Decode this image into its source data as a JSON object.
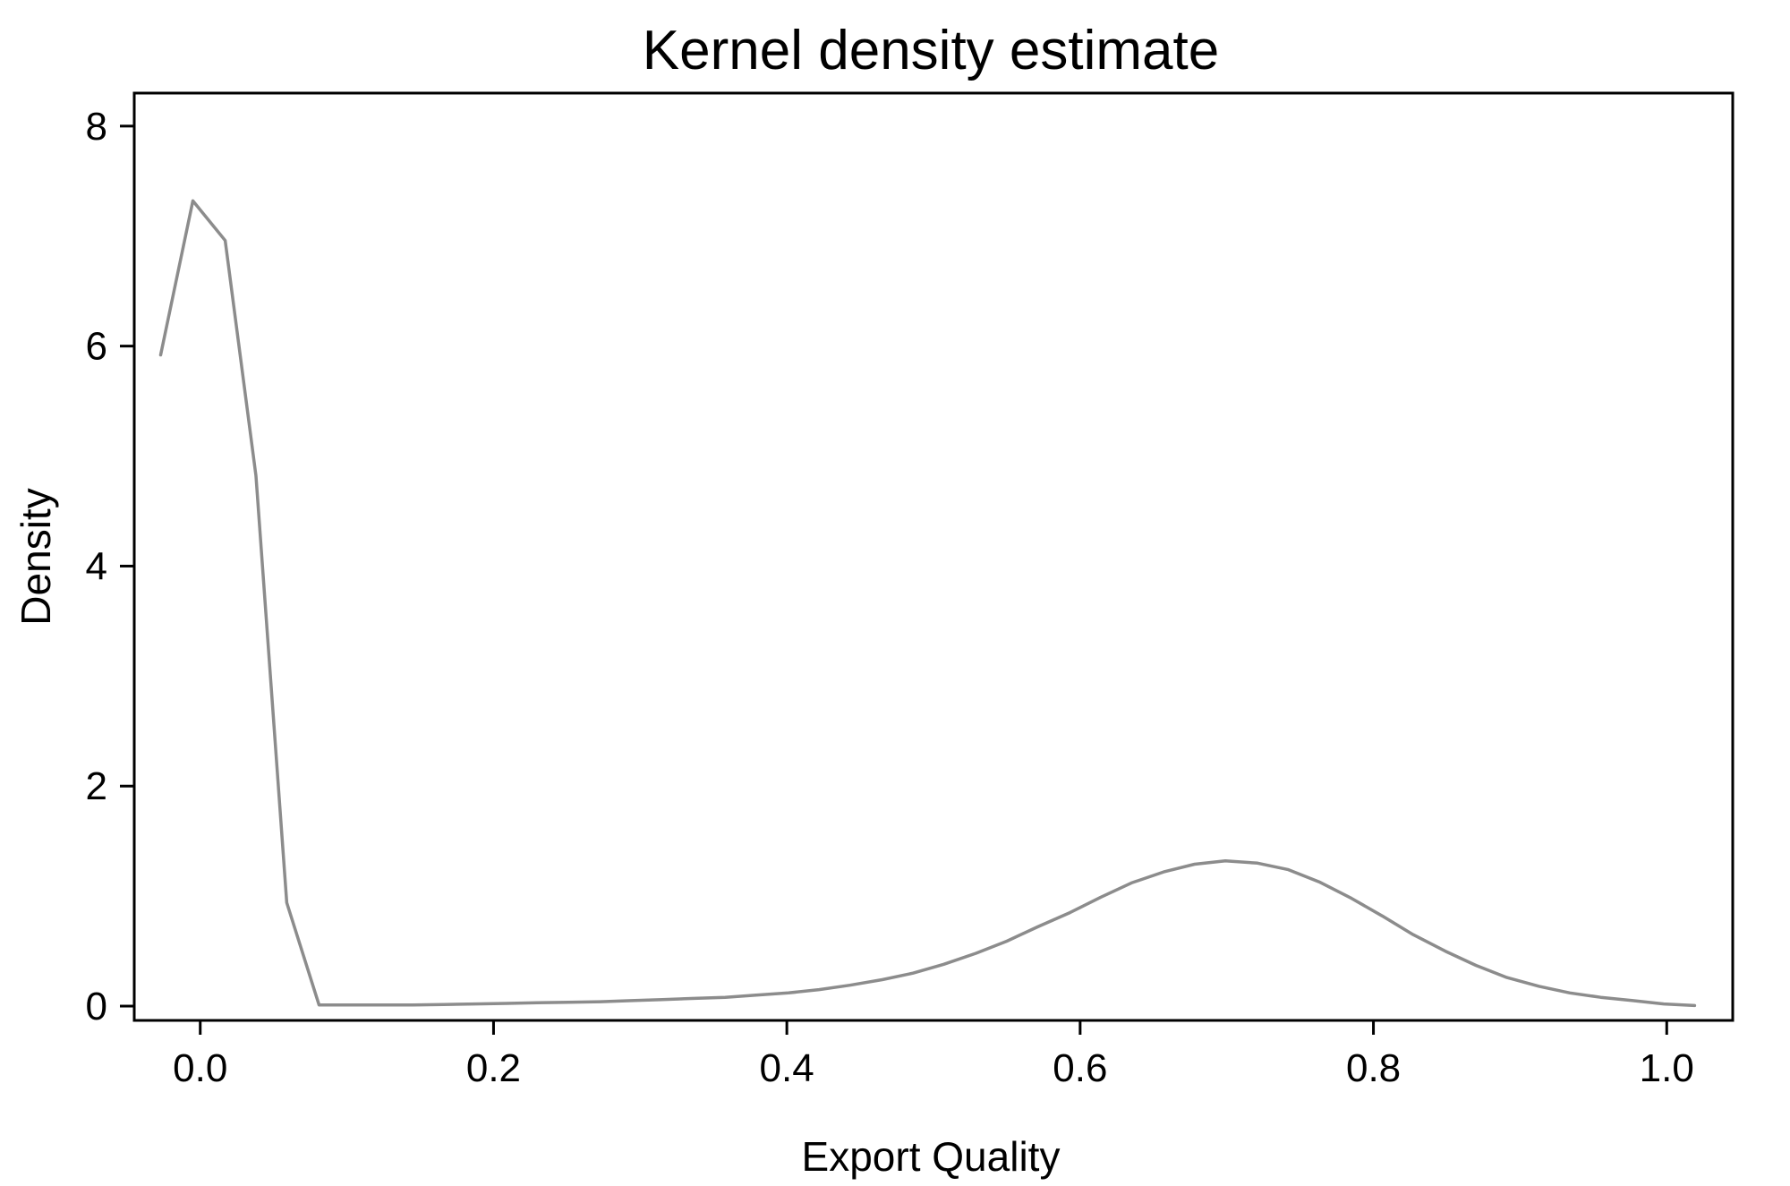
{
  "chart_data": {
    "type": "line",
    "title": "Kernel density estimate",
    "xlabel": "Export Quality",
    "ylabel": "Density",
    "xlim": [
      -0.045,
      1.045
    ],
    "ylim": [
      -0.13,
      8.3
    ],
    "xticks": [
      0.0,
      0.2,
      0.4,
      0.6,
      0.8,
      1.0
    ],
    "xtick_labels": [
      "0.0",
      "0.2",
      "0.4",
      "0.6",
      "0.8",
      "1.0"
    ],
    "yticks": [
      0,
      2,
      4,
      6,
      8
    ],
    "ytick_labels": [
      "0",
      "2",
      "4",
      "6",
      "8"
    ],
    "grid": false,
    "legend": "none",
    "line_color": "#8c8c8c",
    "series": [
      {
        "x": [
          -0.027,
          -0.005,
          0.017,
          0.038,
          0.059,
          0.081,
          0.102,
          0.123,
          0.145,
          0.166,
          0.187,
          0.209,
          0.23,
          0.251,
          0.273,
          0.294,
          0.315,
          0.337,
          0.358,
          0.379,
          0.401,
          0.422,
          0.443,
          0.465,
          0.486,
          0.507,
          0.529,
          0.55,
          0.571,
          0.593,
          0.614,
          0.635,
          0.657,
          0.678,
          0.699,
          0.721,
          0.742,
          0.763,
          0.785,
          0.806,
          0.827,
          0.849,
          0.87,
          0.891,
          0.913,
          0.934,
          0.955,
          0.977,
          0.998,
          1.019
        ],
        "y": [
          5.92,
          7.32,
          6.96,
          4.82,
          0.94,
          0.01,
          0.01,
          0.01,
          0.01,
          0.015,
          0.02,
          0.025,
          0.03,
          0.035,
          0.04,
          0.05,
          0.06,
          0.07,
          0.08,
          0.1,
          0.12,
          0.15,
          0.19,
          0.24,
          0.3,
          0.38,
          0.48,
          0.59,
          0.72,
          0.85,
          0.99,
          1.12,
          1.22,
          1.29,
          1.32,
          1.3,
          1.24,
          1.13,
          0.98,
          0.82,
          0.65,
          0.5,
          0.37,
          0.26,
          0.18,
          0.12,
          0.08,
          0.05,
          0.02,
          0.005
        ]
      }
    ]
  }
}
